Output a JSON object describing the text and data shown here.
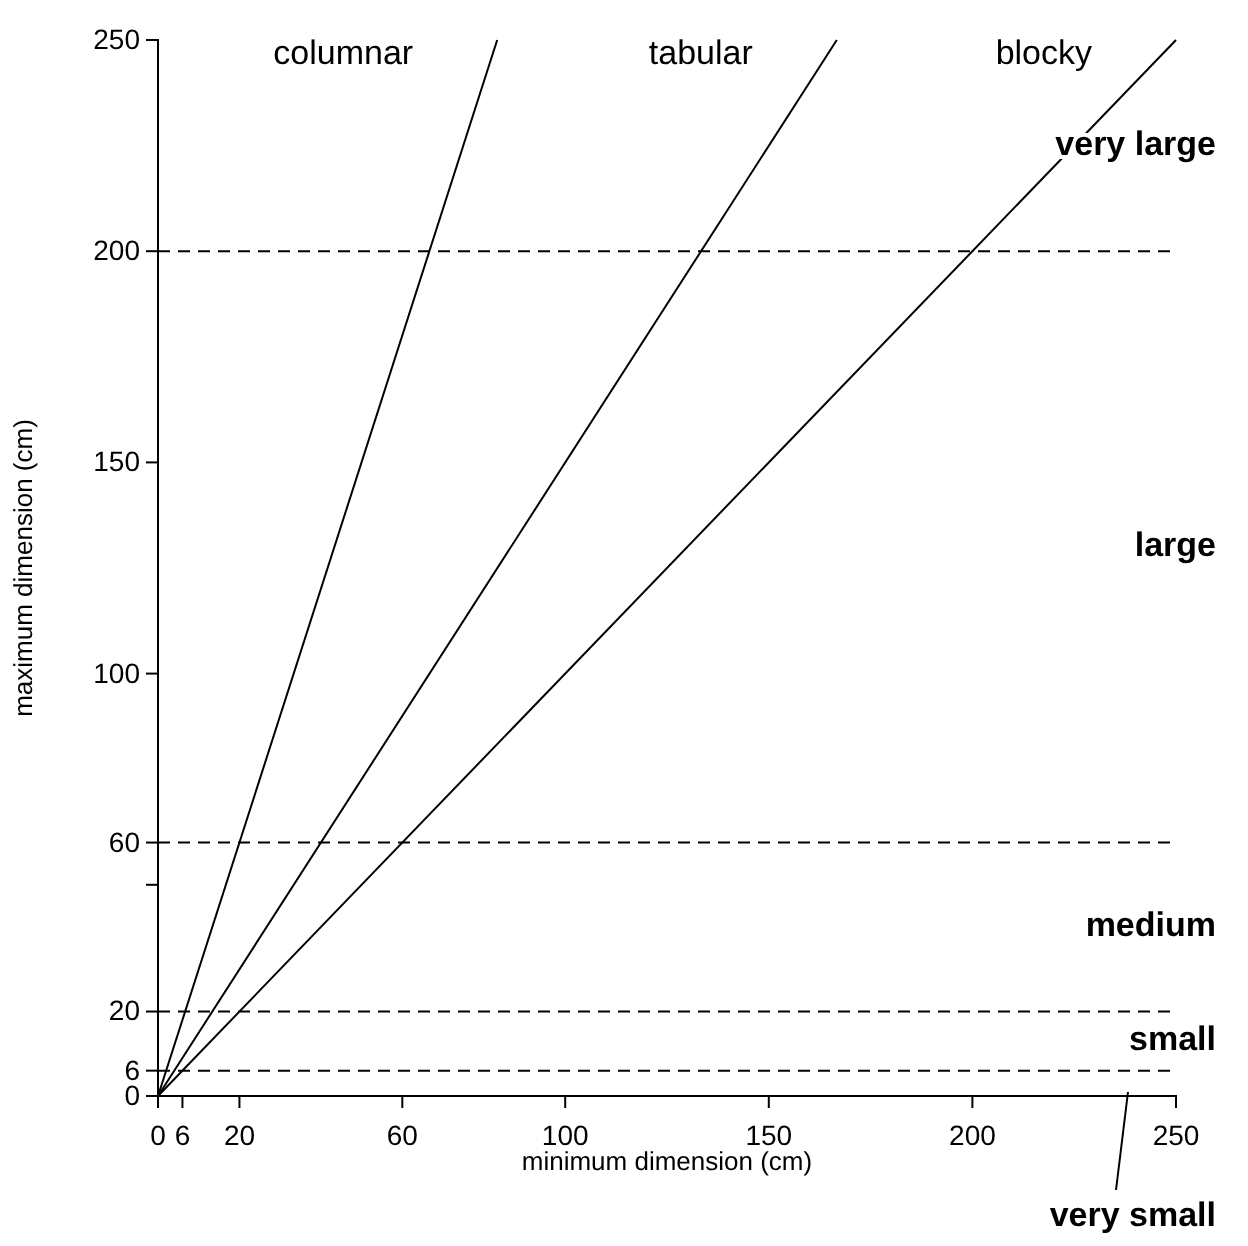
{
  "chart_data": {
    "type": "line",
    "xlabel": "minimum dimension (cm)",
    "ylabel": "maximum dimension (cm)",
    "xlim": [
      0,
      250
    ],
    "ylim": [
      0,
      250
    ],
    "xticks": [
      0,
      6,
      20,
      60,
      100,
      150,
      200,
      250
    ],
    "yticks": [
      0,
      6,
      20,
      {
        "value": 50,
        "label": null
      },
      60,
      100,
      150,
      200,
      250
    ],
    "series": [
      {
        "name": "columnar",
        "color": "#000000",
        "x": [
          0,
          83.3
        ],
        "values": [
          0,
          250
        ]
      },
      {
        "name": "tabular",
        "color": "#000000",
        "x": [
          0,
          166.7
        ],
        "values": [
          0,
          250
        ]
      },
      {
        "name": "blocky",
        "color": "#000000",
        "x": [
          0,
          250
        ],
        "values": [
          0,
          250
        ]
      }
    ],
    "ref_lines": [
      {
        "axis": "y",
        "value": 6,
        "line_style": "dashed"
      },
      {
        "axis": "y",
        "value": 20,
        "line_style": "dashed"
      },
      {
        "axis": "y",
        "value": 60,
        "line_style": "dashed"
      },
      {
        "axis": "y",
        "value": 200,
        "line_style": "dashed"
      }
    ],
    "annotations": [
      "very large",
      "large",
      "medium",
      "small",
      "very small"
    ],
    "marker": "none",
    "line_style": "solid",
    "grid": false,
    "legend": false
  }
}
